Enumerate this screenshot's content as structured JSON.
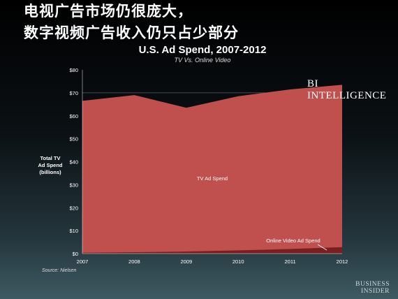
{
  "headline": {
    "line1": "电视广告市场仍很庞大，",
    "line2": "数字视频广告收入仍只占少部分"
  },
  "branding": {
    "bi_intelligence_logo": "BI INTELLIGENCE",
    "business_insider_line1": "BUSINESS",
    "business_insider_line2": "INSIDER"
  },
  "source": "Source: Nielsen",
  "ylabel_lines": [
    "Total TV",
    "Ad Spend",
    "(billions)"
  ],
  "colors": {
    "tv_area": "#c0504d",
    "online_area": "#7a1f1f",
    "background_top": "#000000",
    "background_bottom": "#3e5a62"
  },
  "chart_data": {
    "type": "area",
    "title": "U.S. Ad Spend, 2007-2012",
    "subtitle": "TV Vs. Online Video",
    "ylabel": "Total TV Ad Spend (billions)",
    "x": [
      "2007",
      "2008",
      "2009",
      "2010",
      "2011",
      "2012"
    ],
    "ylim": [
      0,
      80
    ],
    "yticks": [
      "$0",
      "$10",
      "$20",
      "$30",
      "$40",
      "$50",
      "$60",
      "$70",
      "$80"
    ],
    "grid": false,
    "legend": "none",
    "series": [
      {
        "name": "TV Ad Spend",
        "values": [
          66.5,
          69.0,
          63.5,
          68.5,
          71.5,
          73.5
        ]
      },
      {
        "name": "Online Video Ad Spend",
        "values": [
          0.4,
          0.6,
          0.9,
          1.4,
          2.0,
          2.8
        ]
      }
    ]
  }
}
